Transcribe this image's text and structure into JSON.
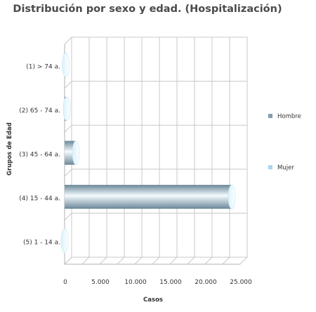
{
  "chart_data": {
    "type": "bar",
    "orientation": "horizontal",
    "title": "Distribución por sexo y edad. (Hospitalización)",
    "xlabel": "Casos",
    "ylabel": "Grupos de Edad",
    "categories": [
      "(1) > 74 a.",
      "(2) 65 - 74 a.",
      "(3) 45 - 64 a.",
      "(4) 15 - 44 a.",
      "(5) 1 - 14 a."
    ],
    "series": [
      {
        "name": "Hombre",
        "values": [
          150,
          300,
          1600,
          23800,
          0
        ],
        "color": "#7f9fb0"
      },
      {
        "name": "Mujer",
        "values": [
          0,
          0,
          0,
          0,
          0
        ],
        "color": "#a9d6ee"
      }
    ],
    "xlim": [
      0,
      25000
    ],
    "xticks": [
      "0",
      "5.000",
      "10.000",
      "15.000",
      "20.000",
      "25.000"
    ],
    "grid": true,
    "legend": "right"
  }
}
